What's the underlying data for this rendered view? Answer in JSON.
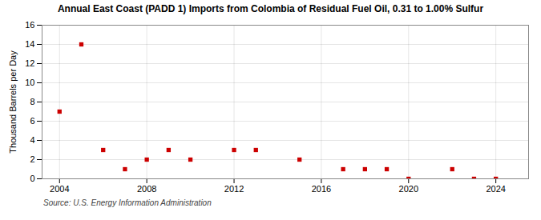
{
  "chart_data": {
    "type": "scatter",
    "title": "Annual East Coast (PADD 1) Imports from Colombia of Residual Fuel Oil, 0.31 to 1.00% Sulfur",
    "ylabel": "Thousand Barrels per Day",
    "source": "Source: U.S. Energy Information Administration",
    "x": [
      2004,
      2005,
      2006,
      2007,
      2008,
      2009,
      2010,
      2012,
      2013,
      2015,
      2017,
      2018,
      2019,
      2020,
      2022,
      2023,
      2024
    ],
    "values": [
      7.0,
      14.0,
      3.0,
      1.0,
      2.0,
      3.0,
      2.0,
      3.0,
      3.0,
      2.0,
      1.0,
      1.0,
      1.0,
      0.0,
      1.0,
      0.0,
      0.0
    ],
    "color": "#cc0000",
    "marker": "square",
    "xlim": [
      2003.2,
      2025.5
    ],
    "xticks": [
      2004,
      2008,
      2012,
      2016,
      2020,
      2024
    ],
    "ylim": [
      0,
      16
    ],
    "yticks": [
      0,
      2,
      4,
      6,
      8,
      10,
      12,
      14,
      16
    ],
    "grid": true
  }
}
